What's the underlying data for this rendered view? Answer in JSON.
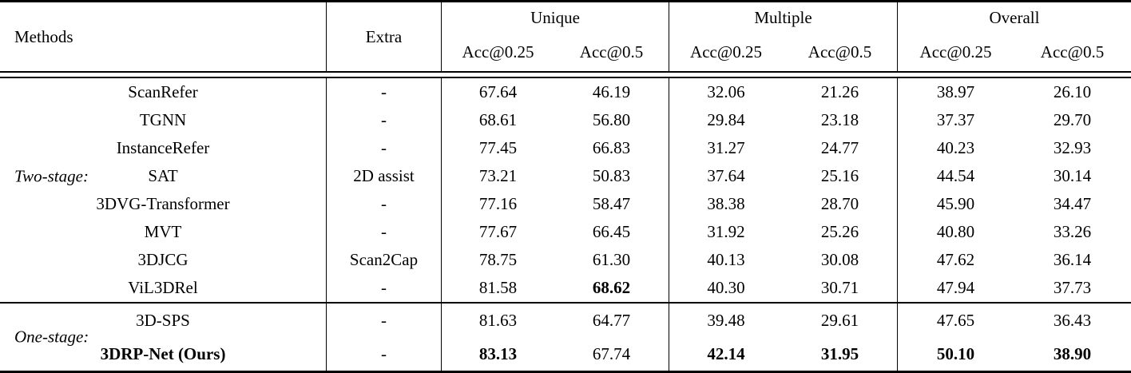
{
  "table": {
    "col_methods": "Methods",
    "col_extra": "Extra",
    "groups": [
      {
        "label": "Unique",
        "sub": [
          "Acc@0.25",
          "Acc@0.5"
        ]
      },
      {
        "label": "Multiple",
        "sub": [
          "Acc@0.25",
          "Acc@0.5"
        ]
      },
      {
        "label": "Overall",
        "sub": [
          "Acc@0.25",
          "Acc@0.5"
        ]
      }
    ],
    "sections": [
      {
        "label": "Two-stage:",
        "rows": [
          {
            "method": "ScanRefer",
            "extra": "-",
            "values": [
              "67.64",
              "46.19",
              "32.06",
              "21.26",
              "38.97",
              "26.10"
            ]
          },
          {
            "method": "TGNN",
            "extra": "-",
            "values": [
              "68.61",
              "56.80",
              "29.84",
              "23.18",
              "37.37",
              "29.70"
            ]
          },
          {
            "method": "InstanceRefer",
            "extra": "-",
            "values": [
              "77.45",
              "66.83",
              "31.27",
              "24.77",
              "40.23",
              "32.93"
            ]
          },
          {
            "method": "SAT",
            "extra": "2D assist",
            "values": [
              "73.21",
              "50.83",
              "37.64",
              "25.16",
              "44.54",
              "30.14"
            ]
          },
          {
            "method": "3DVG-Transformer",
            "extra": "-",
            "values": [
              "77.16",
              "58.47",
              "38.38",
              "28.70",
              "45.90",
              "34.47"
            ]
          },
          {
            "method": "MVT",
            "extra": "-",
            "values": [
              "77.67",
              "66.45",
              "31.92",
              "25.26",
              "40.80",
              "33.26"
            ]
          },
          {
            "method": "3DJCG",
            "extra": "Scan2Cap",
            "values": [
              "78.75",
              "61.30",
              "40.13",
              "30.08",
              "47.62",
              "36.14"
            ]
          },
          {
            "method": "ViL3DRel",
            "extra": "-",
            "values": [
              "81.58",
              "68.62",
              "40.30",
              "30.71",
              "47.94",
              "37.73"
            ]
          }
        ]
      },
      {
        "label": "One-stage:",
        "rows": [
          {
            "method": "3D-SPS",
            "extra": "-",
            "values": [
              "81.63",
              "64.77",
              "39.48",
              "29.61",
              "47.65",
              "36.43"
            ]
          },
          {
            "method": "3DRP-Net (Ours)",
            "extra": "-",
            "values": [
              "83.13",
              "67.74",
              "42.14",
              "31.95",
              "50.10",
              "38.90"
            ]
          }
        ]
      }
    ]
  }
}
